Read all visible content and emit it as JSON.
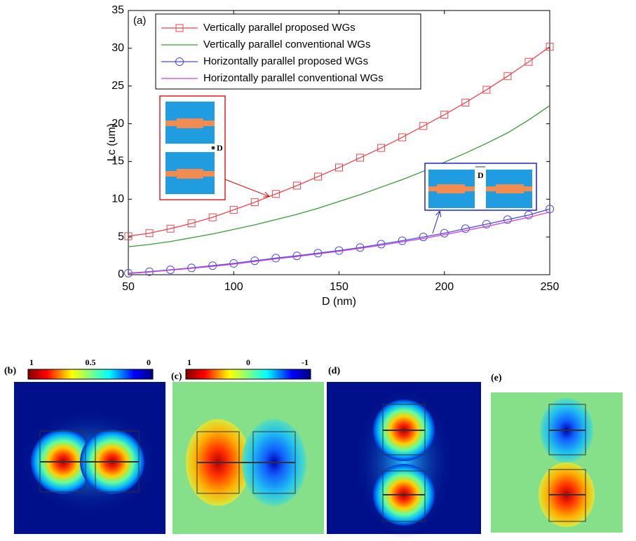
{
  "chart_data": {
    "type": "line",
    "annotation": "(a)",
    "xlabel": "D (nm)",
    "ylabel": "Lc (um)",
    "x": [
      50,
      60,
      70,
      80,
      90,
      100,
      110,
      120,
      130,
      140,
      150,
      160,
      170,
      180,
      190,
      200,
      210,
      220,
      230,
      240,
      250
    ],
    "xlim": [
      50,
      250
    ],
    "xticks": [
      50,
      100,
      150,
      200,
      250
    ],
    "ylim": [
      0,
      35
    ],
    "yticks": [
      0,
      5,
      10,
      15,
      20,
      25,
      30,
      35
    ],
    "series": [
      {
        "name": "Vertically parallel proposed WGs",
        "color": "#e8474f",
        "marker": "square",
        "values": [
          5.1,
          5.5,
          6.1,
          6.8,
          7.6,
          8.6,
          9.6,
          10.7,
          11.8,
          13.0,
          14.2,
          15.5,
          16.8,
          18.2,
          19.7,
          21.2,
          22.8,
          24.5,
          26.3,
          28.2,
          30.2
        ]
      },
      {
        "name": "Vertically parallel conventional WGs",
        "color": "#3a9a3a",
        "marker": "none",
        "values": [
          3.7,
          4.0,
          4.4,
          4.9,
          5.4,
          6.0,
          6.6,
          7.3,
          8.0,
          8.8,
          9.7,
          10.6,
          11.6,
          12.6,
          13.7,
          14.9,
          16.1,
          17.4,
          18.8,
          20.5,
          22.4
        ]
      },
      {
        "name": "Horizontally parallel proposed WGs",
        "color": "#4a4ae0",
        "marker": "circle",
        "values": [
          0.2,
          0.4,
          0.65,
          0.9,
          1.2,
          1.5,
          1.85,
          2.2,
          2.5,
          2.85,
          3.2,
          3.6,
          4.05,
          4.5,
          5.0,
          5.5,
          6.1,
          6.7,
          7.3,
          7.9,
          8.7
        ]
      },
      {
        "name": "Horizontally parallel conventional WGs",
        "color": "#cc44dd",
        "marker": "none",
        "values": [
          0.15,
          0.35,
          0.6,
          0.85,
          1.1,
          1.4,
          1.75,
          2.1,
          2.4,
          2.75,
          3.1,
          3.5,
          3.9,
          4.35,
          4.8,
          5.3,
          5.85,
          6.4,
          7.0,
          7.6,
          8.3
        ]
      }
    ],
    "inset_labels": [
      "D",
      "D"
    ]
  },
  "panels": [
    {
      "label": "(b)",
      "colorbar_ticks": [
        "1",
        "0.5",
        "0"
      ]
    },
    {
      "label": "(c)",
      "colorbar_ticks": [
        "1",
        "0",
        "-1"
      ]
    },
    {
      "label": "(d)"
    },
    {
      "label": "(e)"
    }
  ]
}
